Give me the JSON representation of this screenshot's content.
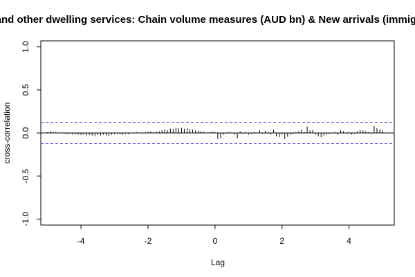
{
  "chart_data": {
    "type": "bar",
    "title": "and other dwelling services: Chain volume measures (AUD bn) & New arrivals (immigra",
    "xlabel": "Lag",
    "ylabel": "cross-correlation",
    "xlim": [
      -5.2,
      5.35
    ],
    "ylim": [
      -1.07,
      1.07
    ],
    "x_ticks": [
      -4,
      -2,
      0,
      2,
      4
    ],
    "x_tick_labels": [
      "-4",
      "-2",
      "0",
      "2",
      "4"
    ],
    "y_ticks": [
      -1.0,
      -0.5,
      0.0,
      0.5,
      1.0
    ],
    "y_tick_labels": [
      "-1.0",
      "-0.5",
      "0.0",
      "0.5",
      "1.0"
    ],
    "confidence_bounds": [
      0.125,
      -0.125
    ],
    "lag_step": 0.0833,
    "lags": [
      -5.0,
      -4.917,
      -4.833,
      -4.75,
      -4.667,
      -4.583,
      -4.5,
      -4.417,
      -4.333,
      -4.25,
      -4.167,
      -4.083,
      -4.0,
      -3.917,
      -3.833,
      -3.75,
      -3.667,
      -3.583,
      -3.5,
      -3.417,
      -3.333,
      -3.25,
      -3.167,
      -3.083,
      -3.0,
      -2.917,
      -2.833,
      -2.75,
      -2.667,
      -2.583,
      -2.5,
      -2.417,
      -2.333,
      -2.25,
      -2.167,
      -2.083,
      -2.0,
      -1.917,
      -1.833,
      -1.75,
      -1.667,
      -1.583,
      -1.5,
      -1.417,
      -1.333,
      -1.25,
      -1.167,
      -1.083,
      -1.0,
      -0.917,
      -0.833,
      -0.75,
      -0.667,
      -0.583,
      -0.5,
      -0.417,
      -0.333,
      -0.25,
      -0.167,
      -0.083,
      0.0,
      0.083,
      0.167,
      0.25,
      0.333,
      0.417,
      0.5,
      0.583,
      0.667,
      0.75,
      0.833,
      0.917,
      1.0,
      1.083,
      1.167,
      1.25,
      1.333,
      1.417,
      1.5,
      1.583,
      1.667,
      1.75,
      1.833,
      1.917,
      2.0,
      2.083,
      2.167,
      2.25,
      2.333,
      2.417,
      2.5,
      2.583,
      2.667,
      2.75,
      2.833,
      2.917,
      3.0,
      3.083,
      3.167,
      3.25,
      3.333,
      3.417,
      3.5,
      3.583,
      3.667,
      3.75,
      3.833,
      3.917,
      4.0,
      4.083,
      4.167,
      4.25,
      4.333,
      4.417,
      4.5,
      4.583,
      4.667,
      4.75,
      4.833,
      4.917,
      5.0
    ],
    "values": [
      0.01,
      0.02,
      0.015,
      0.01,
      0.005,
      -0.005,
      -0.01,
      -0.015,
      -0.01,
      -0.02,
      -0.015,
      -0.02,
      -0.025,
      -0.02,
      -0.03,
      -0.025,
      -0.03,
      -0.035,
      -0.025,
      -0.03,
      -0.02,
      -0.03,
      -0.035,
      -0.02,
      -0.015,
      -0.01,
      -0.015,
      -0.02,
      -0.01,
      -0.015,
      -0.005,
      0.005,
      0.01,
      0.0,
      -0.005,
      0.01,
      0.015,
      0.02,
      0.01,
      0.015,
      0.02,
      0.03,
      0.04,
      0.03,
      0.05,
      0.045,
      0.06,
      0.055,
      0.06,
      0.05,
      0.055,
      0.045,
      0.04,
      0.03,
      0.025,
      0.02,
      0.015,
      0.005,
      0.01,
      0.02,
      0.01,
      -0.07,
      -0.06,
      -0.02,
      -0.01,
      0.01,
      0.005,
      -0.02,
      -0.06,
      0.02,
      -0.01,
      0.01,
      -0.02,
      -0.01,
      0.01,
      -0.005,
      0.03,
      -0.01,
      0.025,
      0.01,
      -0.02,
      0.04,
      -0.04,
      -0.05,
      -0.02,
      -0.07,
      -0.045,
      -0.02,
      -0.01,
      0.01,
      0.02,
      0.04,
      0.01,
      0.075,
      0.03,
      0.035,
      -0.02,
      -0.04,
      -0.05,
      -0.03,
      -0.02,
      -0.01,
      -0.005,
      0.01,
      -0.02,
      0.03,
      0.02,
      -0.01,
      0.01,
      -0.02,
      -0.01,
      0.02,
      0.035,
      0.03,
      0.02,
      0.01,
      -0.01,
      0.08,
      0.055,
      0.04,
      0.03
    ],
    "colors": {
      "bars": "#000000",
      "baseline": "#000000",
      "confidence_line": "#3a3adb",
      "frame": "#000000"
    },
    "grid": false,
    "legend": "none"
  }
}
